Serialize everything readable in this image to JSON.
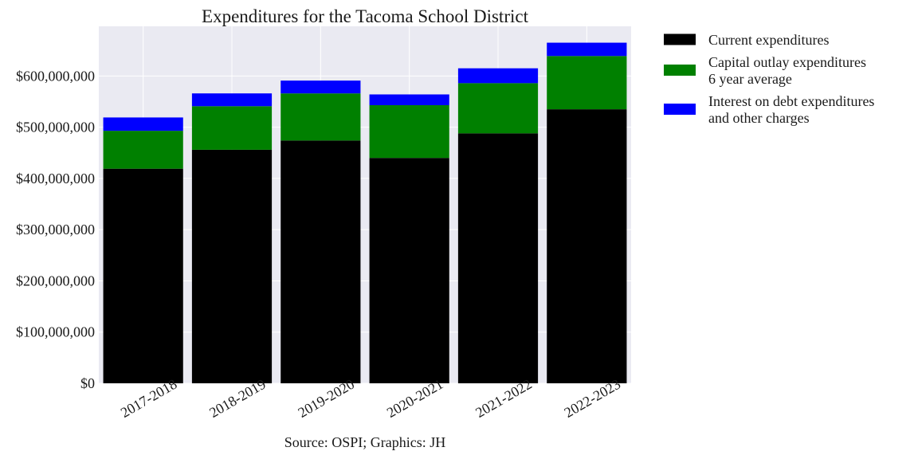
{
  "chart_data": {
    "type": "bar",
    "stacked": true,
    "title": "Expenditures for the Tacoma School District",
    "source": "Source: OSPI; Graphics: JH",
    "xlabel": "",
    "ylabel": "",
    "categories": [
      "2017-2018",
      "2018-2019",
      "2019-2020",
      "2020-2021",
      "2021-2022",
      "2022-2023"
    ],
    "ylim": [
      0,
      697000000
    ],
    "yticks": [
      0,
      100000000,
      200000000,
      300000000,
      400000000,
      500000000,
      600000000
    ],
    "ytick_labels": [
      "$0",
      "$100,000,000",
      "$200,000,000",
      "$300,000,000",
      "$400,000,000",
      "$500,000,000",
      "$600,000,000"
    ],
    "grid": true,
    "legend_position": "outside-right",
    "legend_labels": [
      [
        "Current expenditures"
      ],
      [
        "Capital outlay expenditures",
        "6 year average"
      ],
      [
        "Interest on debt expenditures",
        "and other charges"
      ]
    ],
    "series": [
      {
        "color": "#000000",
        "values": [
          419000000,
          456000000,
          474000000,
          440000000,
          488000000,
          535000000
        ]
      },
      {
        "color": "#008000",
        "values": [
          74000000,
          85000000,
          92000000,
          103000000,
          98000000,
          104000000
        ]
      },
      {
        "color": "#0000ff",
        "values": [
          26000000,
          25000000,
          25000000,
          21000000,
          29000000,
          26000000
        ]
      }
    ],
    "colors": {
      "plot_background": "#eaeaf2",
      "grid": "#ffffff"
    }
  }
}
